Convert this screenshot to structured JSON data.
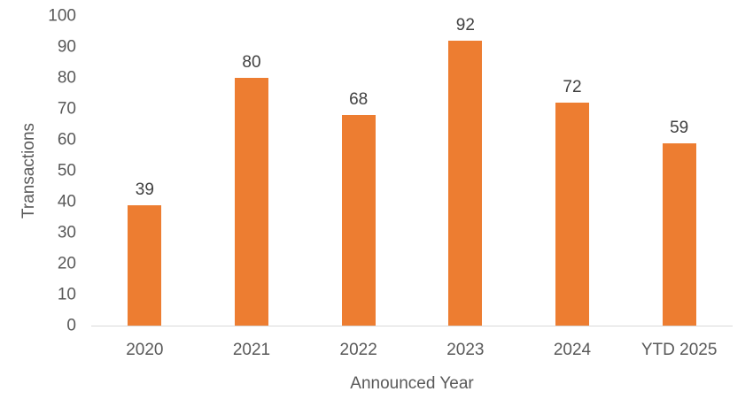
{
  "chart_data": {
    "type": "bar",
    "title": "",
    "categories": [
      "2020",
      "2021",
      "2022",
      "2023",
      "2024",
      "YTD 2025"
    ],
    "values": [
      39,
      80,
      68,
      92,
      72,
      59
    ],
    "xlabel": "Announced Year",
    "ylabel": "Transactions",
    "ylim": [
      0,
      100
    ],
    "yticks": [
      0,
      10,
      20,
      30,
      40,
      50,
      60,
      70,
      80,
      90,
      100
    ],
    "grid": false,
    "legend": "none",
    "data_labels": true,
    "colors": {
      "bar": "#ED7D31",
      "axis_line": "#D9D9D9",
      "tick_text": "#595959",
      "data_label_text": "#404040",
      "background": "#FFFFFF"
    }
  }
}
